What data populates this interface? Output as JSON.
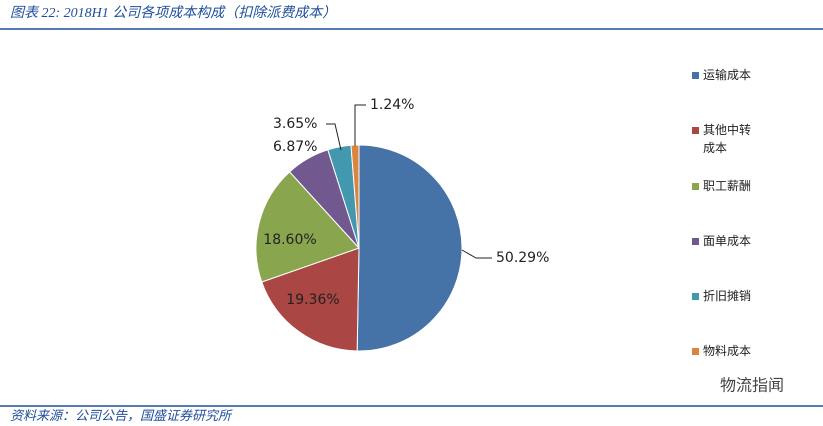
{
  "chart_data": {
    "type": "pie",
    "title": "图表 22: 2018H1 公司各项成本构成（扣除派费成本）",
    "categories": [
      "运输成本",
      "其他中转成本",
      "职工薪酬",
      "面单成本",
      "折旧摊销",
      "物料成本"
    ],
    "values": [
      50.29,
      19.36,
      18.6,
      6.87,
      3.65,
      1.24
    ],
    "value_labels": [
      "50.29%",
      "19.36%",
      "18.60%",
      "6.87%",
      "3.65%",
      "1.24%"
    ],
    "colors": [
      "#4572a7",
      "#aa4643",
      "#89a54e",
      "#71588f",
      "#4198af",
      "#db843d"
    ],
    "legend": "right",
    "source": "资料来源：公司公告，国盛证券研究所",
    "watermark": "物流指闻"
  }
}
